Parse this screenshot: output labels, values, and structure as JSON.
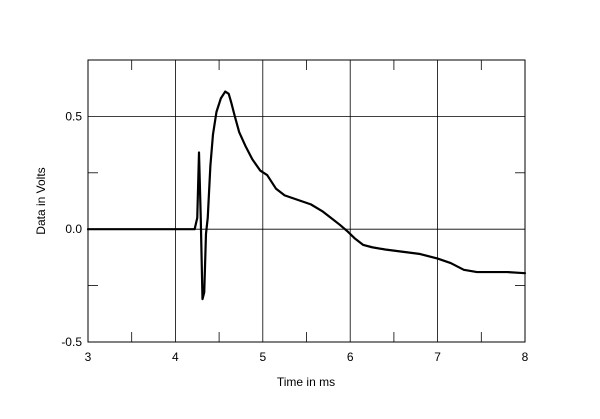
{
  "chart_data": {
    "type": "line",
    "title": "",
    "xlabel": "Time in ms",
    "ylabel": "Data in Volts",
    "xlim": [
      3,
      8
    ],
    "ylim": [
      -0.5,
      0.75
    ],
    "x_ticks": [
      3,
      4,
      5,
      6,
      7,
      8
    ],
    "x_tick_labels": [
      "3",
      "4",
      "5",
      "6",
      "7",
      "8"
    ],
    "y_ticks": [
      -0.5,
      0.0,
      0.5
    ],
    "y_tick_labels": [
      "-0.5",
      "0.0",
      "0.5"
    ],
    "grid": true,
    "line_color": "#000000",
    "series": [
      {
        "x": [
          3.0,
          4.1,
          4.22,
          4.25,
          4.27,
          4.29,
          4.31,
          4.33,
          4.35,
          4.37,
          4.4,
          4.43,
          4.47,
          4.52,
          4.57,
          4.61,
          4.64,
          4.68,
          4.73,
          4.8,
          4.88,
          4.97,
          5.05,
          5.15,
          5.25,
          5.4,
          5.55,
          5.68,
          5.78,
          5.88,
          5.97,
          6.05,
          6.15,
          6.25,
          6.4,
          6.6,
          6.8,
          7.0,
          7.15,
          7.3,
          7.45,
          7.6,
          7.8,
          8.0
        ],
        "y": [
          0.0,
          0.0,
          0.0,
          0.05,
          0.34,
          0.05,
          -0.31,
          -0.28,
          -0.02,
          0.05,
          0.28,
          0.42,
          0.52,
          0.58,
          0.61,
          0.6,
          0.56,
          0.5,
          0.43,
          0.37,
          0.31,
          0.26,
          0.24,
          0.18,
          0.15,
          0.13,
          0.11,
          0.08,
          0.05,
          0.02,
          -0.01,
          -0.04,
          -0.07,
          -0.08,
          -0.09,
          -0.1,
          -0.11,
          -0.13,
          -0.15,
          -0.18,
          -0.19,
          -0.19,
          -0.19,
          -0.195
        ]
      }
    ]
  }
}
